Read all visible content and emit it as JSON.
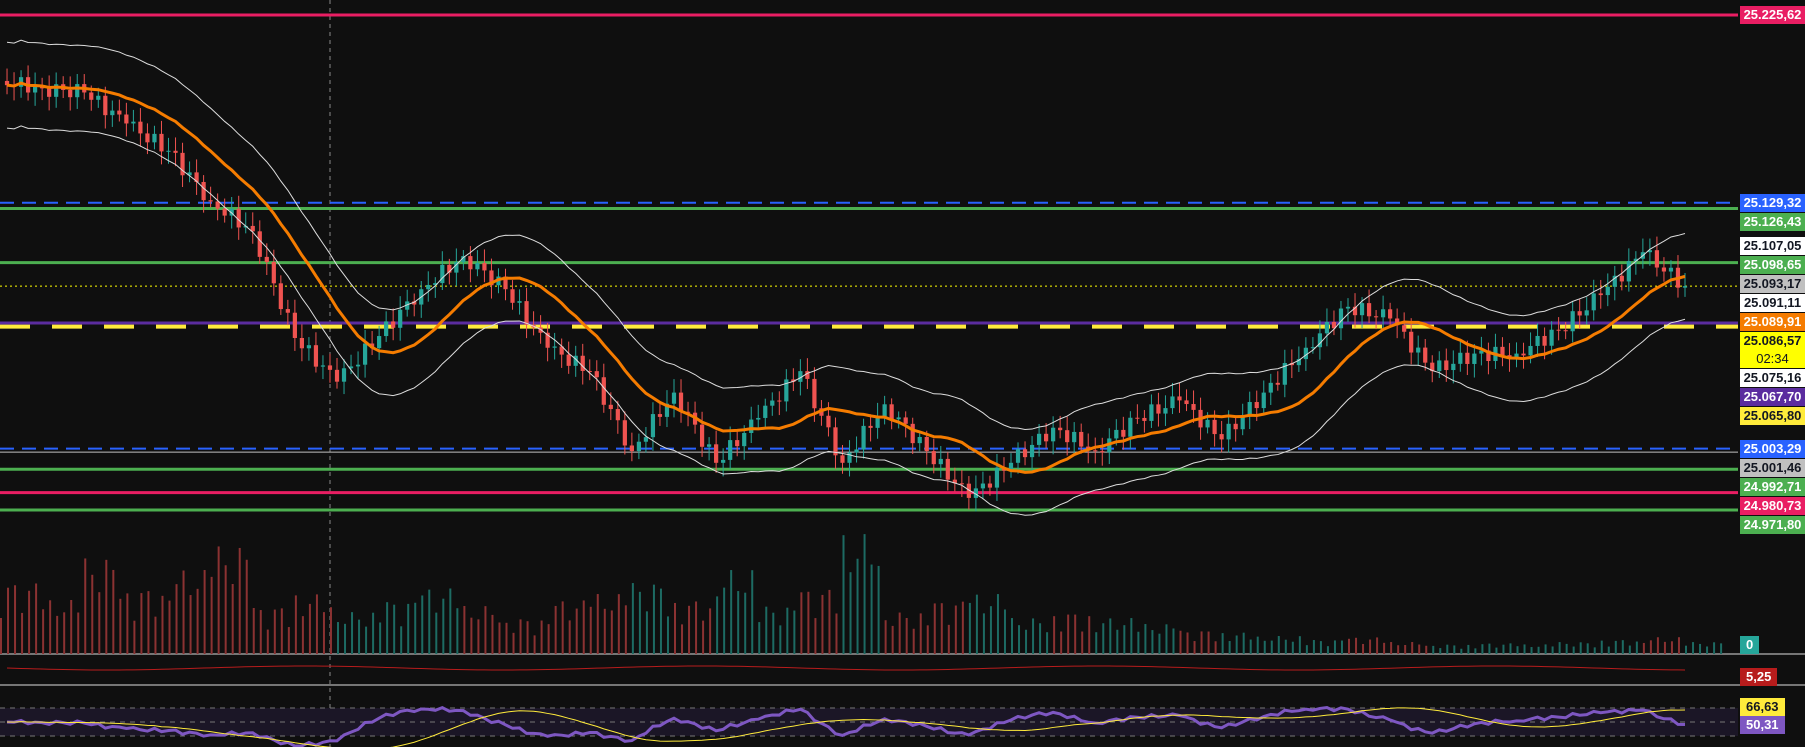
{
  "chart_data": {
    "type": "candlestick",
    "symbol_pane": "price",
    "ylim": [
      24960,
      25232
    ],
    "closes": [
      25191.8,
      25188,
      25185.9,
      25170,
      25156,
      25130,
      25114.7,
      25060,
      25037.6,
      25061,
      25085,
      25102,
      25085,
      25055,
      25043,
      25002,
      25032,
      24996,
      25019,
      25043,
      24996,
      25026,
      25002,
      24978,
      24996,
      25014,
      25002,
      25019,
      25028,
      25008,
      25032,
      25055,
      25076,
      25070,
      25043,
      25052,
      25052,
      25064,
      25082,
      25104,
      25086.57
    ],
    "volumes": [
      60,
      45,
      80,
      55,
      70,
      90,
      40,
      50,
      35,
      45,
      55,
      40,
      30,
      45,
      50,
      60,
      45,
      70,
      40,
      55,
      100,
      35,
      45,
      50,
      30,
      35,
      30,
      25,
      20,
      18,
      15,
      12,
      14,
      10,
      8,
      9,
      8,
      10,
      12,
      14,
      10
    ],
    "levels": [
      {
        "value": "25.225,62",
        "price": 25225.62,
        "bg": "#e91e63",
        "fg": "#ffffff",
        "line": "solid",
        "color": "#e91e63"
      },
      {
        "value": "25.129,32",
        "price": 25129.32,
        "bg": "#2962ff",
        "fg": "#ffffff",
        "line": "dashed",
        "color": "#2962ff"
      },
      {
        "value": "25.126,43",
        "price": 25126.43,
        "bg": "#4caf50",
        "fg": "#ffffff",
        "line": "solid",
        "color": "#4caf50"
      },
      {
        "value": "25.107,05",
        "price": 25107.05,
        "bg": "#ffffff",
        "fg": "#131722",
        "line": "none",
        "color": "#ffffff"
      },
      {
        "value": "25.098,65",
        "price": 25098.65,
        "bg": "#4caf50",
        "fg": "#ffffff",
        "line": "solid",
        "color": "#4caf50"
      },
      {
        "value": "25.093,17",
        "price": 25093.17,
        "bg": "#c0c0c0",
        "fg": "#131722",
        "line": "none",
        "color": "#c0c0c0"
      },
      {
        "value": "25.091,11",
        "price": 25091.11,
        "bg": "#ffffff",
        "fg": "#131722",
        "line": "none",
        "color": "#ffffff"
      },
      {
        "value": "25.089,91",
        "price": 25089.91,
        "bg": "#f57c00",
        "fg": "#ffffff",
        "line": "none",
        "color": "#f57c00"
      },
      {
        "value": "25.086,57",
        "price": 25086.57,
        "bg": "#ffff00",
        "fg": "#131722",
        "line": "dotted",
        "color": "#ffff00",
        "countdown": "02:34"
      },
      {
        "value": "25.075,16",
        "price": 25075.16,
        "bg": "#ffffff",
        "fg": "#131722",
        "line": "none",
        "color": "#ffffff"
      },
      {
        "value": "25.067,70",
        "price": 25067.7,
        "bg": "#5b2c9f",
        "fg": "#ffffff",
        "line": "solid",
        "color": "#5b2c9f"
      },
      {
        "value": "25.065,80",
        "price": 25065.8,
        "bg": "#ffeb3b",
        "fg": "#131722",
        "line": "dashed-thick",
        "color": "#ffeb3b"
      },
      {
        "value": "25.003,29",
        "price": 25003.29,
        "bg": "#2962ff",
        "fg": "#ffffff",
        "line": "dashed",
        "color": "#2962ff"
      },
      {
        "value": "25.001,46",
        "price": 25001.46,
        "bg": "#c0c0c0",
        "fg": "#131722",
        "line": "solid-thin",
        "color": "#c0c0c0"
      },
      {
        "value": "24.992,71",
        "price": 24992.71,
        "bg": "#4caf50",
        "fg": "#ffffff",
        "line": "solid",
        "color": "#4caf50"
      },
      {
        "value": "24.980,73",
        "price": 24980.73,
        "bg": "#e91e63",
        "fg": "#ffffff",
        "line": "solid",
        "color": "#e91e63"
      },
      {
        "value": "24.971,80",
        "price": 24971.8,
        "bg": "#4caf50",
        "fg": "#ffffff",
        "line": "solid",
        "color": "#4caf50"
      }
    ],
    "volume_label": "0",
    "indicator_label": "5,25",
    "rsi": {
      "ma_label": "66,63",
      "value_label": "50,31",
      "bands": [
        70,
        50,
        30
      ]
    },
    "colors": {
      "up": "#26a69a",
      "down": "#ef5350",
      "ma": "#f57c00",
      "rsi": "#7e57c2",
      "rsi_ma": "#ffeb3b",
      "grid": "#1e1e1e"
    }
  }
}
